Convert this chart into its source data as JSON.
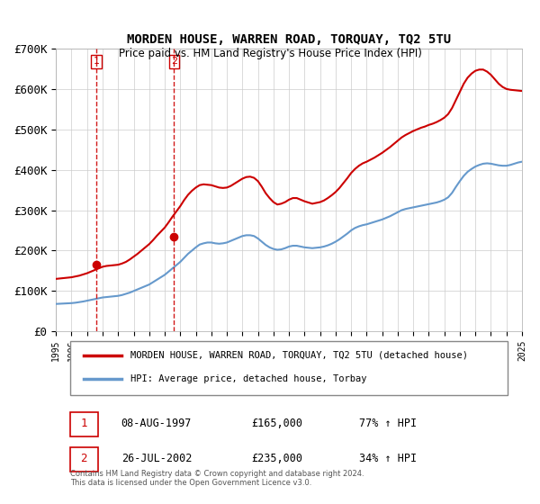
{
  "title": "MORDEN HOUSE, WARREN ROAD, TORQUAY, TQ2 5TU",
  "subtitle": "Price paid vs. HM Land Registry's House Price Index (HPI)",
  "ylabel": "",
  "xlabel": "",
  "ylim": [
    0,
    700000
  ],
  "yticks": [
    0,
    100000,
    200000,
    300000,
    400000,
    500000,
    600000,
    700000
  ],
  "ytick_labels": [
    "£0",
    "£100K",
    "£200K",
    "£300K",
    "£400K",
    "£500K",
    "£600K",
    "£700K"
  ],
  "transactions": [
    {
      "label": "1",
      "year": 1997.6,
      "price": 165000,
      "date": "08-AUG-1997",
      "pct": "77%",
      "direction": "↑"
    },
    {
      "label": "2",
      "year": 2002.6,
      "price": 235000,
      "date": "26-JUL-2002",
      "pct": "34%",
      "direction": "↑"
    }
  ],
  "legend_line1": "MORDEN HOUSE, WARREN ROAD, TORQUAY, TQ2 5TU (detached house)",
  "legend_line2": "HPI: Average price, detached house, Torbay",
  "footer": "Contains HM Land Registry data © Crown copyright and database right 2024.\nThis data is licensed under the Open Government Licence v3.0.",
  "red_color": "#cc0000",
  "blue_color": "#6699cc",
  "bg_color": "#ffffff",
  "grid_color": "#cccccc",
  "hpi_years": [
    1995,
    1995.25,
    1995.5,
    1995.75,
    1996,
    1996.25,
    1996.5,
    1996.75,
    1997,
    1997.25,
    1997.5,
    1997.75,
    1998,
    1998.25,
    1998.5,
    1998.75,
    1999,
    1999.25,
    1999.5,
    1999.75,
    2000,
    2000.25,
    2000.5,
    2000.75,
    2001,
    2001.25,
    2001.5,
    2001.75,
    2002,
    2002.25,
    2002.5,
    2002.75,
    2003,
    2003.25,
    2003.5,
    2003.75,
    2004,
    2004.25,
    2004.5,
    2004.75,
    2005,
    2005.25,
    2005.5,
    2005.75,
    2006,
    2006.25,
    2006.5,
    2006.75,
    2007,
    2007.25,
    2007.5,
    2007.75,
    2008,
    2008.25,
    2008.5,
    2008.75,
    2009,
    2009.25,
    2009.5,
    2009.75,
    2010,
    2010.25,
    2010.5,
    2010.75,
    2011,
    2011.25,
    2011.5,
    2011.75,
    2012,
    2012.25,
    2012.5,
    2012.75,
    2013,
    2013.25,
    2013.5,
    2013.75,
    2014,
    2014.25,
    2014.5,
    2014.75,
    2015,
    2015.25,
    2015.5,
    2015.75,
    2016,
    2016.25,
    2016.5,
    2016.75,
    2017,
    2017.25,
    2017.5,
    2017.75,
    2018,
    2018.25,
    2018.5,
    2018.75,
    2019,
    2019.25,
    2019.5,
    2019.75,
    2020,
    2020.25,
    2020.5,
    2020.75,
    2021,
    2021.25,
    2021.5,
    2021.75,
    2022,
    2022.25,
    2022.5,
    2022.75,
    2023,
    2023.25,
    2023.5,
    2023.75,
    2024,
    2024.25,
    2024.5,
    2024.75,
    2025
  ],
  "hpi_values": [
    68000,
    68500,
    69000,
    69500,
    70000,
    71000,
    72500,
    74000,
    76000,
    78000,
    80000,
    82000,
    84000,
    85000,
    86000,
    87000,
    88000,
    90000,
    93000,
    96000,
    100000,
    104000,
    108000,
    112000,
    116000,
    122000,
    128000,
    134000,
    140000,
    148000,
    156000,
    164000,
    172000,
    182000,
    192000,
    200000,
    208000,
    215000,
    218000,
    220000,
    220000,
    218000,
    217000,
    218000,
    220000,
    224000,
    228000,
    232000,
    236000,
    238000,
    238000,
    236000,
    230000,
    222000,
    214000,
    208000,
    204000,
    202000,
    203000,
    206000,
    210000,
    212000,
    212000,
    210000,
    208000,
    207000,
    206000,
    207000,
    208000,
    210000,
    213000,
    217000,
    222000,
    228000,
    235000,
    242000,
    250000,
    256000,
    260000,
    263000,
    265000,
    268000,
    271000,
    274000,
    277000,
    281000,
    285000,
    290000,
    295000,
    300000,
    303000,
    305000,
    307000,
    309000,
    311000,
    313000,
    315000,
    317000,
    319000,
    322000,
    326000,
    332000,
    343000,
    358000,
    372000,
    385000,
    395000,
    402000,
    408000,
    412000,
    415000,
    416000,
    415000,
    413000,
    411000,
    410000,
    410000,
    412000,
    415000,
    418000,
    420000
  ],
  "price_years": [
    1995,
    1995.25,
    1995.5,
    1995.75,
    1996,
    1996.25,
    1996.5,
    1996.75,
    1997,
    1997.25,
    1997.5,
    1997.75,
    1998,
    1998.25,
    1998.5,
    1998.75,
    1999,
    1999.25,
    1999.5,
    1999.75,
    2000,
    2000.25,
    2000.5,
    2000.75,
    2001,
    2001.25,
    2001.5,
    2001.75,
    2002,
    2002.25,
    2002.5,
    2002.75,
    2003,
    2003.25,
    2003.5,
    2003.75,
    2004,
    2004.25,
    2004.5,
    2004.75,
    2005,
    2005.25,
    2005.5,
    2005.75,
    2006,
    2006.25,
    2006.5,
    2006.75,
    2007,
    2007.25,
    2007.5,
    2007.75,
    2008,
    2008.25,
    2008.5,
    2008.75,
    2009,
    2009.25,
    2009.5,
    2009.75,
    2010,
    2010.25,
    2010.5,
    2010.75,
    2011,
    2011.25,
    2011.5,
    2011.75,
    2012,
    2012.25,
    2012.5,
    2012.75,
    2013,
    2013.25,
    2013.5,
    2013.75,
    2014,
    2014.25,
    2014.5,
    2014.75,
    2015,
    2015.25,
    2015.5,
    2015.75,
    2016,
    2016.25,
    2016.5,
    2016.75,
    2017,
    2017.25,
    2017.5,
    2017.75,
    2018,
    2018.25,
    2018.5,
    2018.75,
    2019,
    2019.25,
    2019.5,
    2019.75,
    2020,
    2020.25,
    2020.5,
    2020.75,
    2021,
    2021.25,
    2021.5,
    2021.75,
    2022,
    2022.25,
    2022.5,
    2022.75,
    2023,
    2023.25,
    2023.5,
    2023.75,
    2024,
    2024.25,
    2024.5,
    2024.75,
    2025
  ],
  "price_values": [
    130000,
    131000,
    132000,
    133000,
    134000,
    136000,
    138000,
    141000,
    144000,
    148000,
    152000,
    156000,
    160000,
    162000,
    163000,
    164000,
    165000,
    168000,
    172000,
    178000,
    185000,
    192000,
    200000,
    208000,
    216000,
    226000,
    237000,
    247000,
    257000,
    270000,
    284000,
    297000,
    310000,
    325000,
    338000,
    348000,
    356000,
    362000,
    364000,
    363000,
    362000,
    359000,
    356000,
    355000,
    356000,
    360000,
    366000,
    372000,
    378000,
    382000,
    383000,
    380000,
    372000,
    358000,
    342000,
    330000,
    320000,
    314000,
    316000,
    320000,
    326000,
    330000,
    330000,
    326000,
    322000,
    319000,
    316000,
    318000,
    320000,
    324000,
    330000,
    337000,
    345000,
    355000,
    367000,
    379000,
    392000,
    402000,
    410000,
    416000,
    420000,
    425000,
    430000,
    436000,
    442000,
    449000,
    456000,
    464000,
    472000,
    480000,
    486000,
    491000,
    496000,
    500000,
    504000,
    507000,
    511000,
    514000,
    518000,
    523000,
    529000,
    538000,
    553000,
    573000,
    593000,
    613000,
    628000,
    638000,
    645000,
    648000,
    648000,
    643000,
    635000,
    624000,
    613000,
    605000,
    600000,
    598000,
    597000,
    596000,
    595000
  ]
}
